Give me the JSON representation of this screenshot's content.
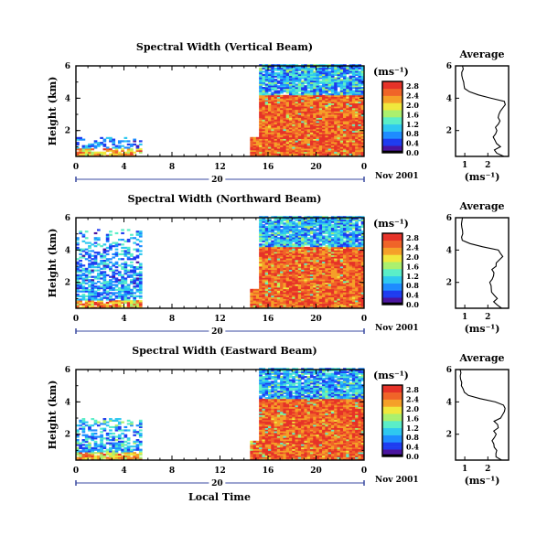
{
  "figure": {
    "ylabel": "Height (km)",
    "xlabel": "Local Time",
    "date_label": "Nov 2001",
    "day_label": "20",
    "units_label": "(ms⁻¹)",
    "avg_title": "Average",
    "avg_xlabel": "(ms⁻¹)"
  },
  "colors": {
    "colormap": [
      "#000000",
      "#4a14a0",
      "#1e3cf0",
      "#1e8cff",
      "#2ec8f0",
      "#5aeec8",
      "#aaf06e",
      "#f0e83c",
      "#f5a028",
      "#f06428",
      "#e63228"
    ],
    "background": "#ffffff"
  },
  "chart_data": [
    {
      "type": "heatmap",
      "title": "Spectral Width (Vertical Beam)",
      "xlabel": "Local Time",
      "ylabel": "Height (km)",
      "x_ticks": [
        "0",
        "4",
        "8",
        "12",
        "16",
        "20",
        "0"
      ],
      "y_ticks": [
        "2",
        "4",
        "6"
      ],
      "xlim": [
        0,
        24
      ],
      "ylim": [
        0.4,
        6
      ],
      "units": "(ms⁻¹)",
      "colorbar_ticks": [
        "0.0",
        "0.4",
        "0.8",
        "1.2",
        "1.6",
        "2.0",
        "2.4",
        "2.8"
      ],
      "colorbar_range": [
        0,
        3.0
      ],
      "data_segments": [
        {
          "x_start": 0.0,
          "x_end": 5.5,
          "height_top_km": 1.6,
          "typical_width": 0.6
        },
        {
          "x_start": 14.5,
          "x_end": 24.0,
          "height_top_km": 6.0,
          "typical_width": 2.6,
          "mixed_layer_top_km": 4.2
        }
      ],
      "average_profile": {
        "title": "Average",
        "xlabel": "(ms⁻¹)",
        "x_ticks": [
          "1",
          "2"
        ],
        "y_ticks": [
          "2",
          "4",
          "6"
        ],
        "xlim": [
          0.6,
          2.9
        ],
        "ylim": [
          0.4,
          6
        ],
        "height_km": [
          0.4,
          0.6,
          0.8,
          1.0,
          1.2,
          1.4,
          1.6,
          1.8,
          2.0,
          2.2,
          2.4,
          2.6,
          2.8,
          3.0,
          3.2,
          3.4,
          3.6,
          3.8,
          4.0,
          4.2,
          4.4,
          4.6,
          4.8,
          5.0,
          5.2,
          5.4,
          5.6,
          5.8,
          6.0
        ],
        "width_ms": [
          2.7,
          2.4,
          2.3,
          2.5,
          2.4,
          2.3,
          2.2,
          2.3,
          2.4,
          2.3,
          2.4,
          2.5,
          2.4,
          2.5,
          2.6,
          2.7,
          2.8,
          2.7,
          2.2,
          1.6,
          1.2,
          1.0,
          0.95,
          0.9,
          0.9,
          0.9,
          0.9,
          0.9,
          0.9
        ]
      }
    },
    {
      "type": "heatmap",
      "title": "Spectral Width (Northward Beam)",
      "xlabel": "Local Time",
      "ylabel": "Height (km)",
      "x_ticks": [
        "0",
        "4",
        "8",
        "12",
        "16",
        "20",
        "0"
      ],
      "y_ticks": [
        "2",
        "4",
        "6"
      ],
      "xlim": [
        0,
        24
      ],
      "ylim": [
        0.4,
        6
      ],
      "units": "(ms⁻¹)",
      "colorbar_ticks": [
        "0.0",
        "0.4",
        "0.8",
        "1.2",
        "1.6",
        "2.0",
        "2.4",
        "2.8"
      ],
      "colorbar_range": [
        0,
        3.0
      ],
      "data_segments": [
        {
          "x_start": 0.0,
          "x_end": 5.5,
          "height_top_km": 5.2,
          "typical_width": 0.7
        },
        {
          "x_start": 14.5,
          "x_end": 24.0,
          "height_top_km": 6.0,
          "typical_width": 2.6,
          "mixed_layer_top_km": 4.2
        }
      ],
      "average_profile": {
        "title": "Average",
        "xlabel": "(ms⁻¹)",
        "x_ticks": [
          "1",
          "2"
        ],
        "y_ticks": [
          "2",
          "4",
          "6"
        ],
        "xlim": [
          0.6,
          2.9
        ],
        "ylim": [
          0.4,
          6
        ],
        "height_km": [
          0.4,
          0.6,
          0.8,
          1.0,
          1.2,
          1.4,
          1.6,
          1.8,
          2.0,
          2.2,
          2.4,
          2.6,
          2.8,
          3.0,
          3.2,
          3.4,
          3.6,
          3.8,
          4.0,
          4.2,
          4.4,
          4.6,
          4.8,
          5.0,
          5.2,
          5.4,
          5.6,
          5.8,
          6.0
        ],
        "width_ms": [
          2.6,
          2.4,
          2.2,
          2.4,
          2.3,
          2.2,
          2.1,
          2.2,
          2.1,
          2.2,
          2.2,
          2.3,
          2.2,
          2.3,
          2.4,
          2.5,
          2.6,
          2.6,
          2.4,
          1.8,
          1.2,
          0.95,
          0.9,
          0.9,
          0.85,
          0.85,
          0.9,
          0.9,
          0.9
        ]
      }
    },
    {
      "type": "heatmap",
      "title": "Spectral Width (Eastward Beam)",
      "xlabel": "Local Time",
      "ylabel": "Height (km)",
      "x_ticks": [
        "0",
        "4",
        "8",
        "12",
        "16",
        "20",
        "0"
      ],
      "y_ticks": [
        "2",
        "4",
        "6"
      ],
      "xlim": [
        0,
        24
      ],
      "ylim": [
        0.4,
        6
      ],
      "units": "(ms⁻¹)",
      "colorbar_ticks": [
        "0.0",
        "0.4",
        "0.8",
        "1.2",
        "1.6",
        "2.0",
        "2.4",
        "2.8"
      ],
      "colorbar_range": [
        0,
        3.0
      ],
      "data_segments": [
        {
          "x_start": 0.0,
          "x_end": 5.5,
          "height_top_km": 3.0,
          "typical_width": 0.8
        },
        {
          "x_start": 14.5,
          "x_end": 24.0,
          "height_top_km": 6.0,
          "typical_width": 2.6,
          "mixed_layer_top_km": 4.2
        }
      ],
      "average_profile": {
        "title": "Average",
        "xlabel": "(ms⁻¹)",
        "x_ticks": [
          "1",
          "2"
        ],
        "y_ticks": [
          "2",
          "4",
          "6"
        ],
        "xlim": [
          0.6,
          2.9
        ],
        "ylim": [
          0.4,
          6
        ],
        "height_km": [
          0.4,
          0.6,
          0.8,
          1.0,
          1.2,
          1.4,
          1.6,
          1.8,
          2.0,
          2.2,
          2.4,
          2.6,
          2.8,
          3.0,
          3.2,
          3.4,
          3.6,
          3.8,
          4.0,
          4.2,
          4.4,
          4.6,
          4.8,
          5.0,
          5.2,
          5.4,
          5.6,
          5.8,
          6.0
        ],
        "width_ms": [
          2.6,
          2.4,
          2.3,
          2.4,
          2.3,
          2.3,
          2.2,
          2.3,
          2.4,
          2.3,
          2.4,
          2.4,
          2.3,
          2.5,
          2.6,
          2.7,
          2.8,
          2.7,
          2.3,
          1.7,
          1.2,
          1.0,
          0.95,
          0.9,
          0.85,
          0.85,
          0.8,
          0.8,
          0.8
        ]
      }
    }
  ]
}
